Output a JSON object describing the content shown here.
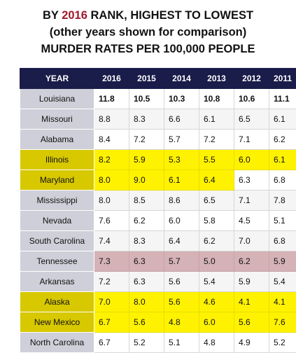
{
  "titles": {
    "line1_prefix": "BY",
    "line1_year": "2016",
    "line1_suffix": "RANK, HIGHEST TO LOWEST",
    "line2": "(other years shown for comparison)",
    "line3": "MURDER RATES PER 100,000 PEOPLE"
  },
  "colors": {
    "header_bg": "#1a1c4a",
    "rank_year_text": "#a0182a",
    "highlight_yellow": "#fff200",
    "tennessee_row": "#d4b2b6",
    "state_cell": "#cfcfd9"
  },
  "chart_data": {
    "type": "table",
    "title": "MURDER RATES PER 100,000 PEOPLE",
    "header_label": "YEAR",
    "columns": [
      "2016",
      "2015",
      "2014",
      "2013",
      "2012",
      "2011"
    ],
    "rows": [
      {
        "state": "Louisiana",
        "values": [
          "11.8",
          "10.5",
          "10.3",
          "10.8",
          "10.6",
          "11.1"
        ],
        "highlight": []
      },
      {
        "state": "Missouri",
        "values": [
          "8.8",
          "8.3",
          "6.6",
          "6.1",
          "6.5",
          "6.1"
        ],
        "highlight": []
      },
      {
        "state": "Alabama",
        "values": [
          "8.4",
          "7.2",
          "5.7",
          "7.2",
          "7.1",
          "6.2"
        ],
        "highlight": []
      },
      {
        "state": "Illinois",
        "values": [
          "8.2",
          "5.9",
          "5.3",
          "5.5",
          "6.0",
          "6.1"
        ],
        "highlight": [
          0,
          1,
          2,
          3,
          4,
          5
        ],
        "highlight_state": true
      },
      {
        "state": "Maryland",
        "values": [
          "8.0",
          "9.0",
          "6.1",
          "6.4",
          "6.3",
          "6.8"
        ],
        "highlight": [
          0,
          1,
          2,
          3
        ],
        "highlight_state": true
      },
      {
        "state": "Mississippi",
        "values": [
          "8.0",
          "8.5",
          "8.6",
          "6.5",
          "7.1",
          "7.8"
        ],
        "highlight": []
      },
      {
        "state": "Nevada",
        "values": [
          "7.6",
          "6.2",
          "6.0",
          "5.8",
          "4.5",
          "5.1"
        ],
        "highlight": []
      },
      {
        "state": "South Carolina",
        "values": [
          "7.4",
          "8.3",
          "6.4",
          "6.2",
          "7.0",
          "6.8"
        ],
        "highlight": []
      },
      {
        "state": "Tennessee",
        "values": [
          "7.3",
          "6.3",
          "5.7",
          "5.0",
          "6.2",
          "5.9"
        ],
        "highlight": [],
        "tennessee": true
      },
      {
        "state": "Arkansas",
        "values": [
          "7.2",
          "6.3",
          "5.6",
          "5.4",
          "5.9",
          "5.4"
        ],
        "highlight": []
      },
      {
        "state": "Alaska",
        "values": [
          "7.0",
          "8.0",
          "5.6",
          "4.6",
          "4.1",
          "4.1"
        ],
        "highlight": [
          0,
          1,
          2,
          3,
          4,
          5
        ],
        "highlight_state": true
      },
      {
        "state": "New Mexico",
        "values": [
          "6.7",
          "5.6",
          "4.8",
          "6.0",
          "5.6",
          "7.6"
        ],
        "highlight": [
          0,
          1,
          2,
          3,
          4,
          5
        ],
        "highlight_state": true
      },
      {
        "state": "North Carolina",
        "values": [
          "6.7",
          "5.2",
          "5.1",
          "4.8",
          "4.9",
          "5.2"
        ],
        "highlight": []
      }
    ]
  }
}
